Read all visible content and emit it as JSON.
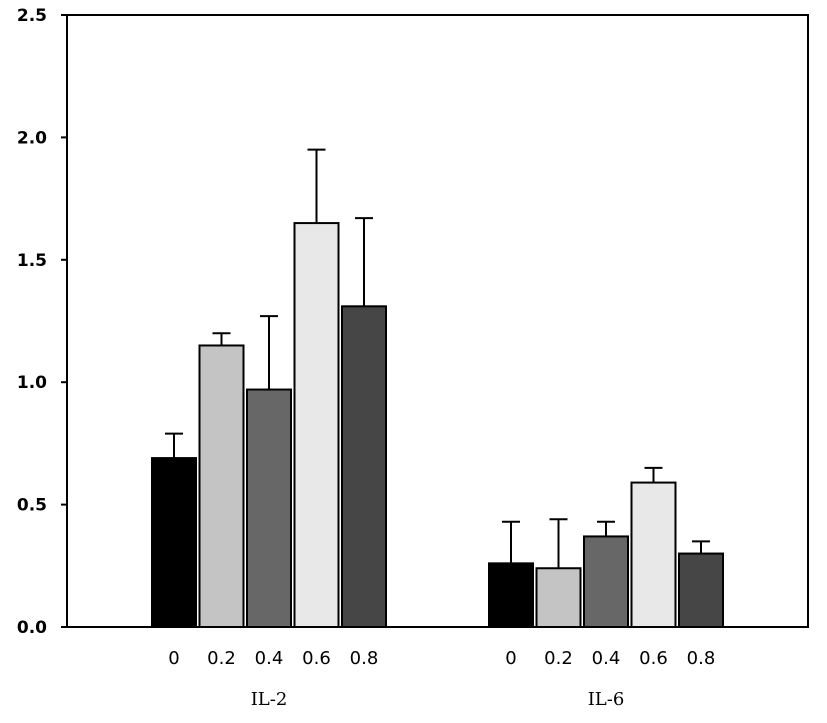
{
  "chart_data": {
    "type": "bar",
    "title": "",
    "xlabel": "",
    "ylabel": "",
    "ylim": [
      0,
      2.5
    ],
    "yticks": [
      "0.0",
      "0.5",
      "1.0",
      "1.5",
      "2.0",
      "2.5"
    ],
    "grid": false,
    "legend": "none",
    "groups": [
      {
        "label": "IL-2",
        "categories": [
          "0",
          "0.2",
          "0.4",
          "0.6",
          "0.8"
        ],
        "values": [
          0.69,
          1.15,
          0.97,
          1.65,
          1.31
        ],
        "errors": [
          0.1,
          0.05,
          0.3,
          0.3,
          0.36
        ]
      },
      {
        "label": "IL-6",
        "categories": [
          "0",
          "0.2",
          "0.4",
          "0.6",
          "0.8"
        ],
        "values": [
          0.26,
          0.24,
          0.37,
          0.59,
          0.3
        ],
        "errors": [
          0.17,
          0.2,
          0.06,
          0.06,
          0.05
        ]
      }
    ],
    "bar_colors": [
      "#000000",
      "#c4c4c4",
      "#676767",
      "#e8e8e8",
      "#464646"
    ]
  }
}
